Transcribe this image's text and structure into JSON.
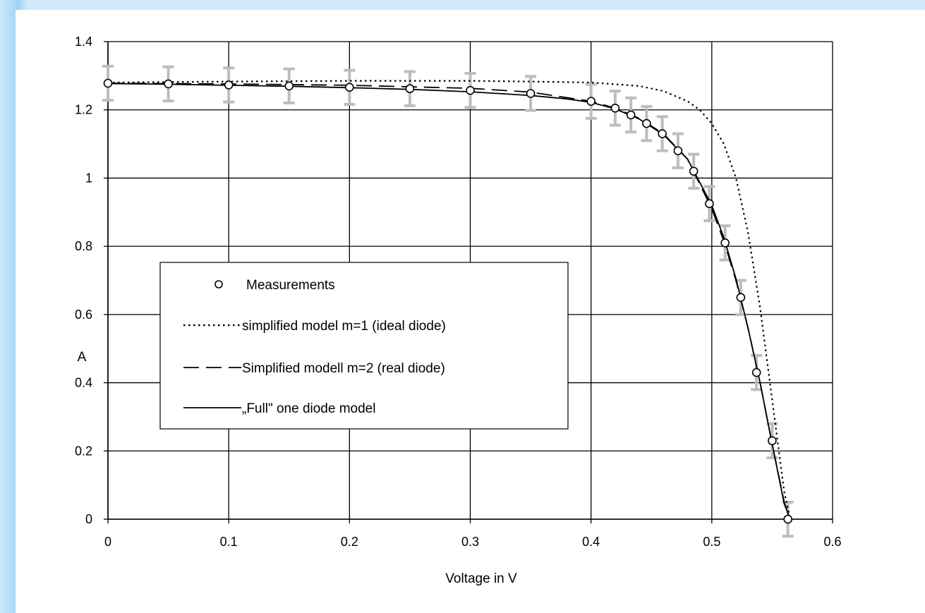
{
  "chart_data": {
    "type": "line",
    "xlabel": "Voltage in V",
    "ylabel": "A",
    "xlim": [
      0,
      0.6
    ],
    "ylim": [
      0,
      1.4
    ],
    "x_ticks": [
      "0",
      "0.1",
      "0.2",
      "0.3",
      "0.4",
      "0.5",
      "0.6"
    ],
    "y_ticks": [
      "0",
      "0.2",
      "0.4",
      "0.6",
      "0.8",
      "1",
      "1.2",
      "1.4"
    ],
    "grid": true,
    "legend_position": "center-left",
    "series": [
      {
        "name": "Measurements",
        "style": "markers-with-error-bars",
        "x": [
          0,
          0.05,
          0.1,
          0.15,
          0.2,
          0.25,
          0.3,
          0.35,
          0.4,
          0.42,
          0.433,
          0.446,
          0.459,
          0.472,
          0.485,
          0.498,
          0.511,
          0.524,
          0.537,
          0.55,
          0.563
        ],
        "y": [
          1.278,
          1.276,
          1.273,
          1.27,
          1.266,
          1.262,
          1.257,
          1.248,
          1.225,
          1.205,
          1.185,
          1.16,
          1.13,
          1.08,
          1.02,
          0.925,
          0.81,
          0.65,
          0.43,
          0.23,
          0.0
        ],
        "error": 0.05
      },
      {
        "name": "simplified model m=1 (ideal diode)",
        "style": "dotted",
        "x": [
          0,
          0.1,
          0.2,
          0.3,
          0.35,
          0.4,
          0.44,
          0.46,
          0.48,
          0.49,
          0.5,
          0.51,
          0.52,
          0.53,
          0.54,
          0.55,
          0.56,
          0.565
        ],
        "y": [
          1.28,
          1.283,
          1.285,
          1.285,
          1.283,
          1.28,
          1.27,
          1.255,
          1.225,
          1.2,
          1.16,
          1.1,
          1.0,
          0.84,
          0.62,
          0.35,
          0.08,
          0.0
        ]
      },
      {
        "name": "Simplified modell m=2 (real diode)",
        "style": "dashed",
        "x": [
          0,
          0.1,
          0.2,
          0.3,
          0.35,
          0.4,
          0.42,
          0.44,
          0.46,
          0.48,
          0.5,
          0.51,
          0.52,
          0.53,
          0.54,
          0.55,
          0.56,
          0.565
        ],
        "y": [
          1.278,
          1.276,
          1.272,
          1.263,
          1.252,
          1.225,
          1.205,
          1.175,
          1.13,
          1.055,
          0.91,
          0.815,
          0.7,
          0.56,
          0.4,
          0.22,
          0.05,
          0.0
        ]
      },
      {
        "name": "„Full\" one diode model",
        "style": "solid",
        "x": [
          0,
          0.05,
          0.1,
          0.15,
          0.2,
          0.25,
          0.3,
          0.35,
          0.38,
          0.4,
          0.42,
          0.44,
          0.46,
          0.48,
          0.5,
          0.51,
          0.52,
          0.53,
          0.54,
          0.55,
          0.56,
          0.565
        ],
        "y": [
          1.277,
          1.275,
          1.272,
          1.269,
          1.265,
          1.26,
          1.253,
          1.242,
          1.232,
          1.222,
          1.203,
          1.173,
          1.127,
          1.055,
          0.92,
          0.825,
          0.705,
          0.56,
          0.4,
          0.22,
          0.045,
          0.0
        ]
      }
    ]
  }
}
